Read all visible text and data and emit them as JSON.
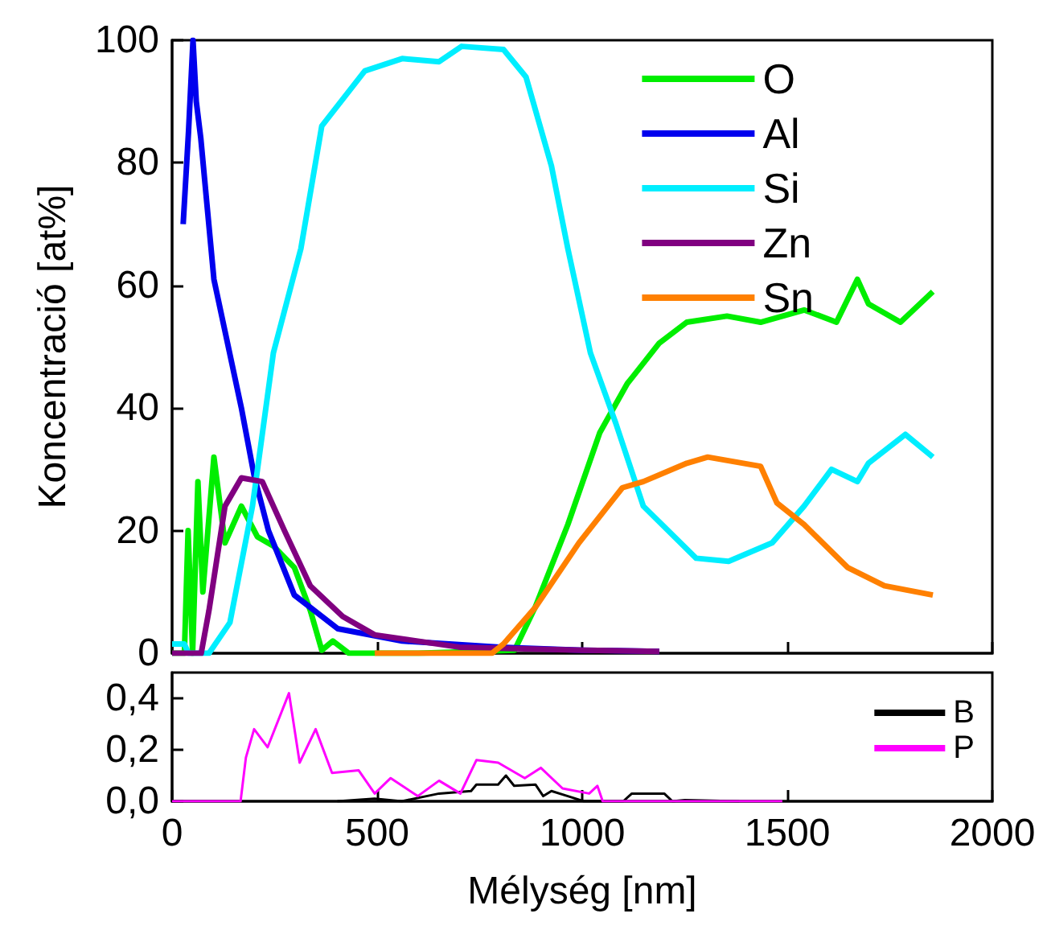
{
  "chart_data": [
    {
      "type": "line",
      "ylabel": "Koncentració [at%]",
      "xlim": [
        0,
        2000
      ],
      "xticks": [
        0,
        500,
        1000,
        1500,
        2000
      ],
      "ylim": [
        0,
        100
      ],
      "yticks": [
        0,
        20,
        40,
        60,
        80,
        100
      ],
      "tick_labels": "y",
      "legend": "top right",
      "grid": false,
      "marker": "none",
      "line_style": "solid",
      "series": [
        {
          "name": "O",
          "color": "#00ee00",
          "x": [
            0,
            30,
            39,
            50,
            63,
            75,
            102,
            129,
            169,
            208,
            247,
            298,
            337,
            365,
            392,
            431,
            600,
            835,
            886,
            965,
            1043,
            1110,
            1122,
            1188,
            1255,
            1353,
            1435,
            1541,
            1620,
            1671,
            1698,
            1776,
            1855
          ],
          "values": [
            0,
            0,
            20,
            0,
            28,
            10,
            32,
            18,
            24,
            19,
            17.5,
            14,
            7,
            0.5,
            2,
            0,
            0,
            0.5,
            7.6,
            21,
            36,
            44,
            45,
            50.6,
            54,
            55,
            54,
            56,
            54,
            61,
            57,
            54,
            59
          ]
        },
        {
          "name": "Al",
          "color": "#0000ee",
          "x": [
            27,
            40,
            51,
            59,
            70,
            102,
            169,
            200,
            235,
            298,
            404,
            561,
            800,
            1000,
            1188
          ],
          "values": [
            70,
            85,
            100,
            90,
            84,
            61,
            40,
            29,
            20,
            9.5,
            4,
            2,
            1,
            0.5,
            0.3
          ]
        },
        {
          "name": "Si",
          "color": "#00eeff",
          "x": [
            0,
            30,
            40,
            90,
            141,
            196,
            247,
            314,
            365,
            470,
            561,
            651,
            706,
            808,
            863,
            925,
            965,
            1020,
            1082,
            1149,
            1278,
            1357,
            1463,
            1541,
            1608,
            1671,
            1698,
            1788,
            1855
          ],
          "values": [
            1.5,
            1.5,
            0,
            0,
            5,
            24,
            49,
            66,
            86,
            95,
            97,
            96.5,
            99,
            98.5,
            94,
            79.5,
            66,
            49,
            37.5,
            24,
            15.5,
            15,
            18,
            24,
            30,
            28,
            31,
            35.7,
            32
          ]
        },
        {
          "name": "Zn",
          "color": "#800080",
          "x": [
            0,
            71,
            90,
            129,
            169,
            220,
            274,
            337,
            416,
            494,
            700,
            1000,
            1188
          ],
          "values": [
            0,
            0,
            7,
            24,
            28.6,
            28,
            20,
            11,
            6,
            3,
            1,
            0.5,
            0.3
          ]
        },
        {
          "name": "Sn",
          "color": "#ff8000",
          "x": [
            494,
            780,
            808,
            886,
            992,
            1098,
            1149,
            1255,
            1306,
            1435,
            1475,
            1541,
            1647,
            1737,
            1855
          ],
          "values": [
            0,
            0,
            1.5,
            7.5,
            18,
            27,
            28,
            31,
            32,
            30.5,
            24.5,
            21,
            14,
            11,
            9.5
          ]
        }
      ]
    },
    {
      "type": "line",
      "xlabel": "Mélység [nm]",
      "xlim": [
        0,
        2000
      ],
      "xticks": [
        0,
        500,
        1000,
        1500,
        2000
      ],
      "ylim": [
        0,
        0.5
      ],
      "yticks": [
        {
          "value": 0,
          "label": "0,0"
        },
        {
          "value": 0.2,
          "label": "0,2"
        },
        {
          "value": 0.4,
          "label": "0,4"
        }
      ],
      "legend": "right",
      "grid": false,
      "marker": "none",
      "line_style": "solid",
      "series": [
        {
          "name": "B",
          "color": "#000000",
          "x": [
            403,
            494,
            560,
            651,
            729,
            742,
            795,
            814,
            834,
            886,
            905,
            925,
            965,
            1004,
            1100,
            1121,
            1200,
            1220,
            1250,
            1383
          ],
          "values": [
            0,
            0.01,
            0,
            0.03,
            0.04,
            0.065,
            0.065,
            0.1,
            0.06,
            0.065,
            0.02,
            0.04,
            0.02,
            0,
            0,
            0.03,
            0.03,
            0,
            0.005,
            0
          ]
        },
        {
          "name": "P",
          "color": "#ff00ff",
          "x": [
            0,
            167,
            180,
            200,
            233,
            285,
            311,
            350,
            390,
            455,
            494,
            533,
            599,
            651,
            703,
            742,
            795,
            860,
            899,
            952,
            1017,
            1037,
            1050,
            1488
          ],
          "values": [
            0,
            0,
            0.17,
            0.28,
            0.21,
            0.42,
            0.15,
            0.28,
            0.11,
            0.12,
            0.03,
            0.09,
            0.02,
            0.08,
            0.03,
            0.16,
            0.15,
            0.09,
            0.13,
            0.05,
            0.03,
            0.06,
            0,
            0
          ]
        }
      ]
    }
  ]
}
